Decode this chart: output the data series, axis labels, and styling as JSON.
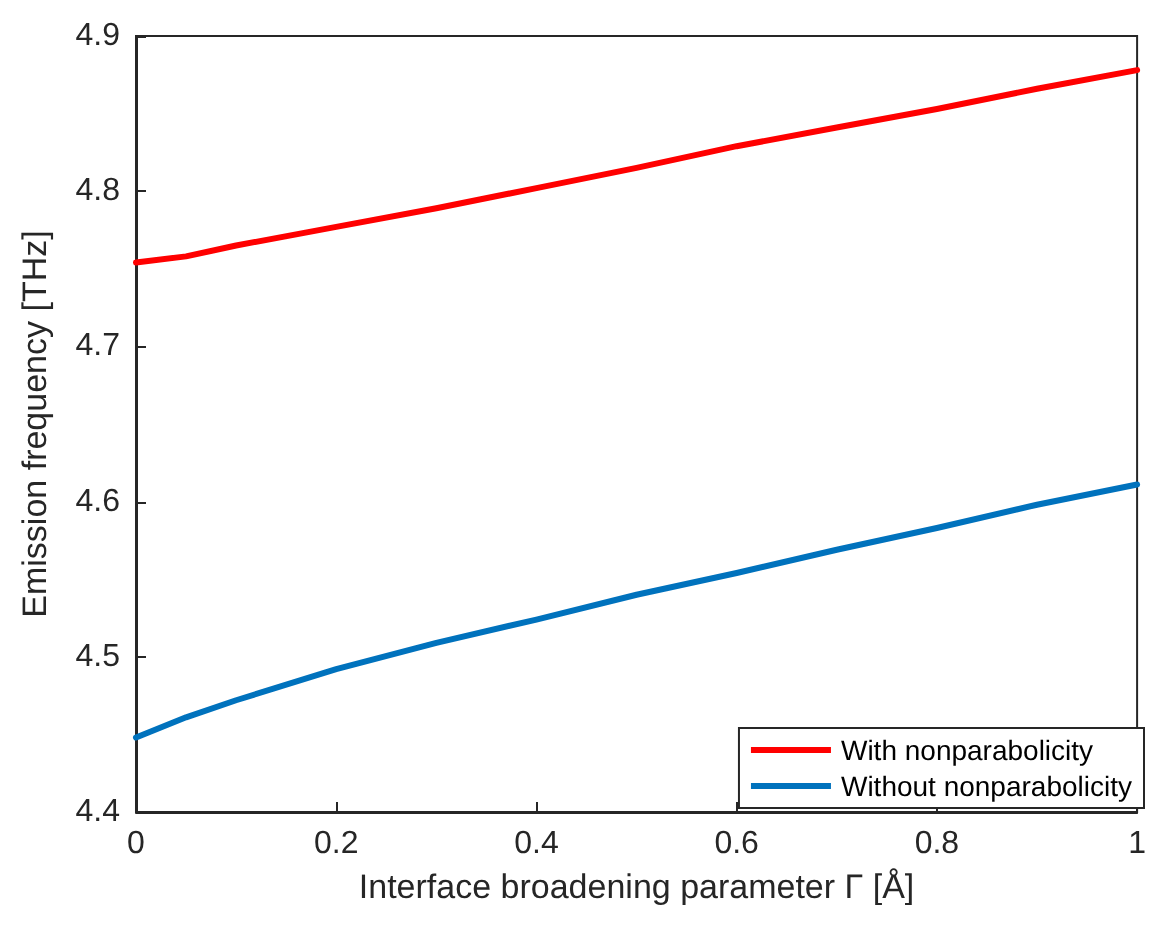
{
  "chart_data": {
    "type": "line",
    "xlabel": "Interface broadening parameter Γ [Å]",
    "ylabel": "Emission frequency [THz]",
    "x": [
      0,
      0.05,
      0.1,
      0.2,
      0.3,
      0.4,
      0.5,
      0.6,
      0.7,
      0.8,
      0.9,
      1
    ],
    "series": [
      {
        "name": "With nonparabolicity",
        "color": "#ff0000",
        "values": [
          4.754,
          4.758,
          4.765,
          4.777,
          4.789,
          4.802,
          4.815,
          4.829,
          4.841,
          4.853,
          4.866,
          4.878
        ]
      },
      {
        "name": "Without nonparabolicity",
        "color": "#0072bd",
        "values": [
          4.448,
          4.461,
          4.472,
          4.492,
          4.509,
          4.524,
          4.54,
          4.554,
          4.569,
          4.583,
          4.598,
          4.611
        ]
      }
    ],
    "xlim": [
      0,
      1
    ],
    "xticks": [
      0,
      0.2,
      0.4,
      0.6,
      0.8,
      1
    ],
    "ylim": [
      4.4,
      4.9
    ],
    "yticks": [
      4.4,
      4.5,
      4.6,
      4.7,
      4.8,
      4.9
    ],
    "grid": false,
    "legend": "bottom right",
    "marker": "none",
    "line_style": "solid"
  }
}
